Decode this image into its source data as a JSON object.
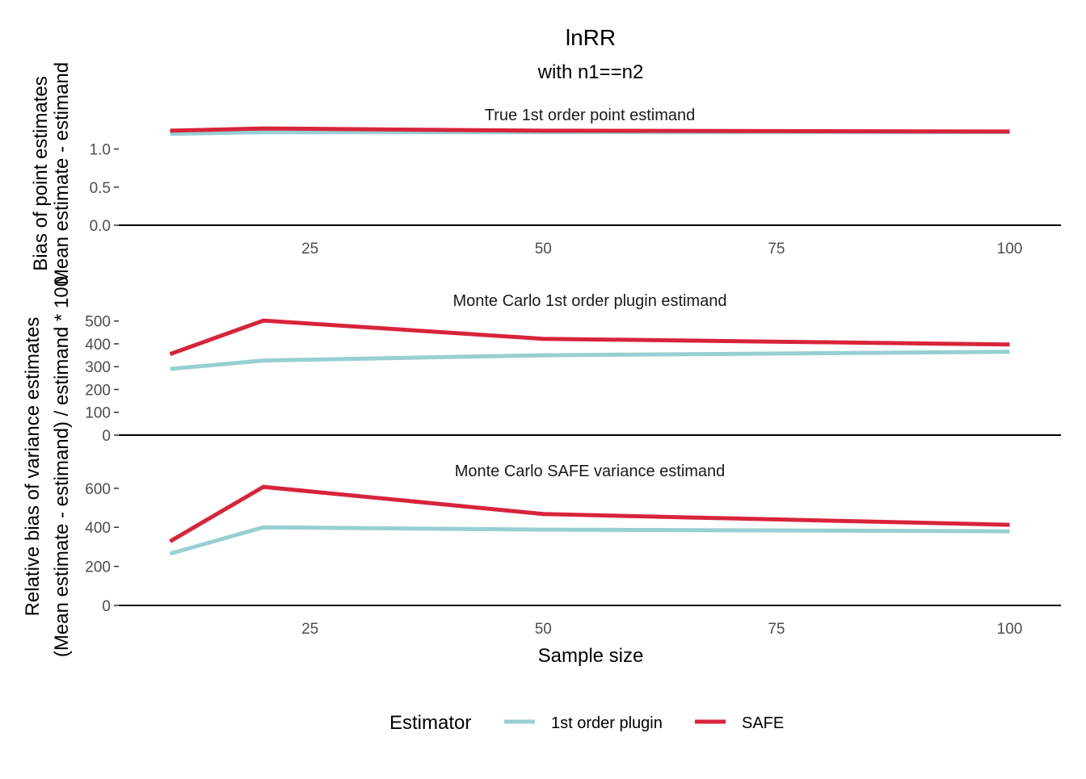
{
  "title": "lnRR",
  "subtitle": "with n1==n2",
  "xlabel": "Sample size",
  "ylabel_upper": {
    "line1": "Bias of point estimates",
    "line2": "Mean estimate - estimand"
  },
  "ylabel_lower": {
    "line1": "Relative bias of variance estimates",
    "line2": "(Mean estimate - estimand) / estimand * 100"
  },
  "legend": {
    "title": "Estimator",
    "placement": "bottom",
    "items": [
      {
        "label": "1st order plugin",
        "color": "#98CFD2"
      },
      {
        "label": "SAFE",
        "color": "#D8243B"
      }
    ]
  },
  "chart_data": [
    {
      "type": "line",
      "panel_title": "True 1st order point estimand",
      "x": [
        10,
        20,
        50,
        100
      ],
      "xlim": [
        4.5,
        105.5
      ],
      "xticks": [
        25,
        50,
        75,
        100
      ],
      "show_x_ticks": true,
      "ylim": [
        0,
        1.25
      ],
      "yticks": [
        0.0,
        0.5,
        1.0
      ],
      "ytick_labels": [
        "0.0",
        "0.5",
        "1.0"
      ],
      "series": [
        {
          "name": "1st order plugin",
          "values": [
            1.2,
            1.22,
            1.22,
            1.22
          ],
          "color": "#98CFD2"
        },
        {
          "name": "SAFE",
          "values": [
            1.24,
            1.27,
            1.24,
            1.23
          ],
          "color": "#D8243B"
        }
      ]
    },
    {
      "type": "line",
      "panel_title": "Monte Carlo 1st order plugin estimand",
      "x": [
        10,
        20,
        50,
        100
      ],
      "xlim": [
        4.5,
        105.5
      ],
      "xticks": [
        25,
        50,
        75,
        100
      ],
      "show_x_ticks": false,
      "ylim": [
        0,
        520
      ],
      "yticks": [
        0,
        100,
        200,
        300,
        400,
        500
      ],
      "ytick_labels": [
        "0",
        "100",
        "200",
        "300",
        "400",
        "500"
      ],
      "series": [
        {
          "name": "1st order plugin",
          "values": [
            290,
            327,
            350,
            365
          ],
          "color": "#98CFD2"
        },
        {
          "name": "SAFE",
          "values": [
            355,
            502,
            422,
            397
          ],
          "color": "#D8243B"
        }
      ]
    },
    {
      "type": "line",
      "panel_title": "Monte Carlo SAFE variance estimand",
      "x": [
        10,
        20,
        50,
        100
      ],
      "xlim": [
        4.5,
        105.5
      ],
      "xticks": [
        25,
        50,
        75,
        100
      ],
      "show_x_ticks": true,
      "ylim": [
        0,
        620
      ],
      "yticks": [
        0,
        200,
        400,
        600
      ],
      "ytick_labels": [
        "0",
        "200",
        "400",
        "600"
      ],
      "series": [
        {
          "name": "1st order plugin",
          "values": [
            265,
            400,
            388,
            380
          ],
          "color": "#98CFD2"
        },
        {
          "name": "SAFE",
          "values": [
            328,
            607,
            468,
            413
          ],
          "color": "#D8243B"
        }
      ]
    }
  ]
}
